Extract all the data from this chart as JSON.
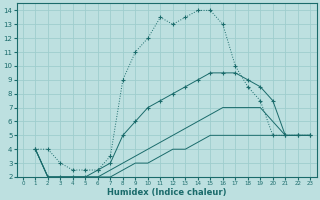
{
  "xlabel": "Humidex (Indice chaleur)",
  "xlim": [
    -0.5,
    23.5
  ],
  "ylim": [
    2,
    14.5
  ],
  "xticks": [
    0,
    1,
    2,
    3,
    4,
    5,
    6,
    7,
    8,
    9,
    10,
    11,
    12,
    13,
    14,
    15,
    16,
    17,
    18,
    19,
    20,
    21,
    22,
    23
  ],
  "yticks": [
    2,
    3,
    4,
    5,
    6,
    7,
    8,
    9,
    10,
    11,
    12,
    13,
    14
  ],
  "bg_color": "#bde0e0",
  "line_color": "#1a6b6b",
  "grid_color": "#9ecece",
  "curves": [
    {
      "style": "dotted_markers",
      "x": [
        1,
        2,
        3,
        4,
        5,
        6,
        7,
        8,
        9,
        10,
        11,
        12,
        13,
        14,
        15,
        16,
        17,
        18,
        19,
        20,
        21,
        22,
        23
      ],
      "y": [
        4,
        4,
        3,
        2.5,
        2.5,
        2.5,
        3.5,
        9,
        11,
        12,
        13.5,
        13,
        13.5,
        14,
        14,
        13,
        10,
        8.5,
        7.5,
        5,
        5,
        5,
        5
      ]
    },
    {
      "style": "solid_markers",
      "x": [
        1,
        2,
        3,
        4,
        5,
        6,
        7,
        8,
        9,
        10,
        11,
        12,
        13,
        14,
        15,
        16,
        17,
        18,
        19,
        20,
        21,
        22,
        23
      ],
      "y": [
        4,
        2,
        2,
        2,
        2,
        2.5,
        3,
        5,
        6,
        7,
        7.5,
        8,
        8.5,
        9,
        9.5,
        9.5,
        9.5,
        9,
        8.5,
        7.5,
        5,
        5,
        5
      ]
    },
    {
      "style": "solid",
      "x": [
        1,
        2,
        3,
        4,
        5,
        6,
        7,
        8,
        9,
        10,
        11,
        12,
        13,
        14,
        15,
        16,
        17,
        18,
        19,
        20,
        21,
        22,
        23
      ],
      "y": [
        4,
        2,
        2,
        2,
        2,
        2,
        2.5,
        3,
        3.5,
        4,
        4.5,
        5,
        5.5,
        6,
        6.5,
        7,
        7,
        7,
        7,
        6,
        5,
        5,
        5
      ]
    },
    {
      "style": "solid",
      "x": [
        1,
        2,
        3,
        4,
        5,
        6,
        7,
        8,
        9,
        10,
        11,
        12,
        13,
        14,
        15,
        16,
        17,
        18,
        19,
        20,
        21,
        22,
        23
      ],
      "y": [
        4,
        2,
        2,
        2,
        2,
        2,
        2,
        2.5,
        3,
        3,
        3.5,
        4,
        4,
        4.5,
        5,
        5,
        5,
        5,
        5,
        5,
        5,
        5,
        5
      ]
    }
  ]
}
